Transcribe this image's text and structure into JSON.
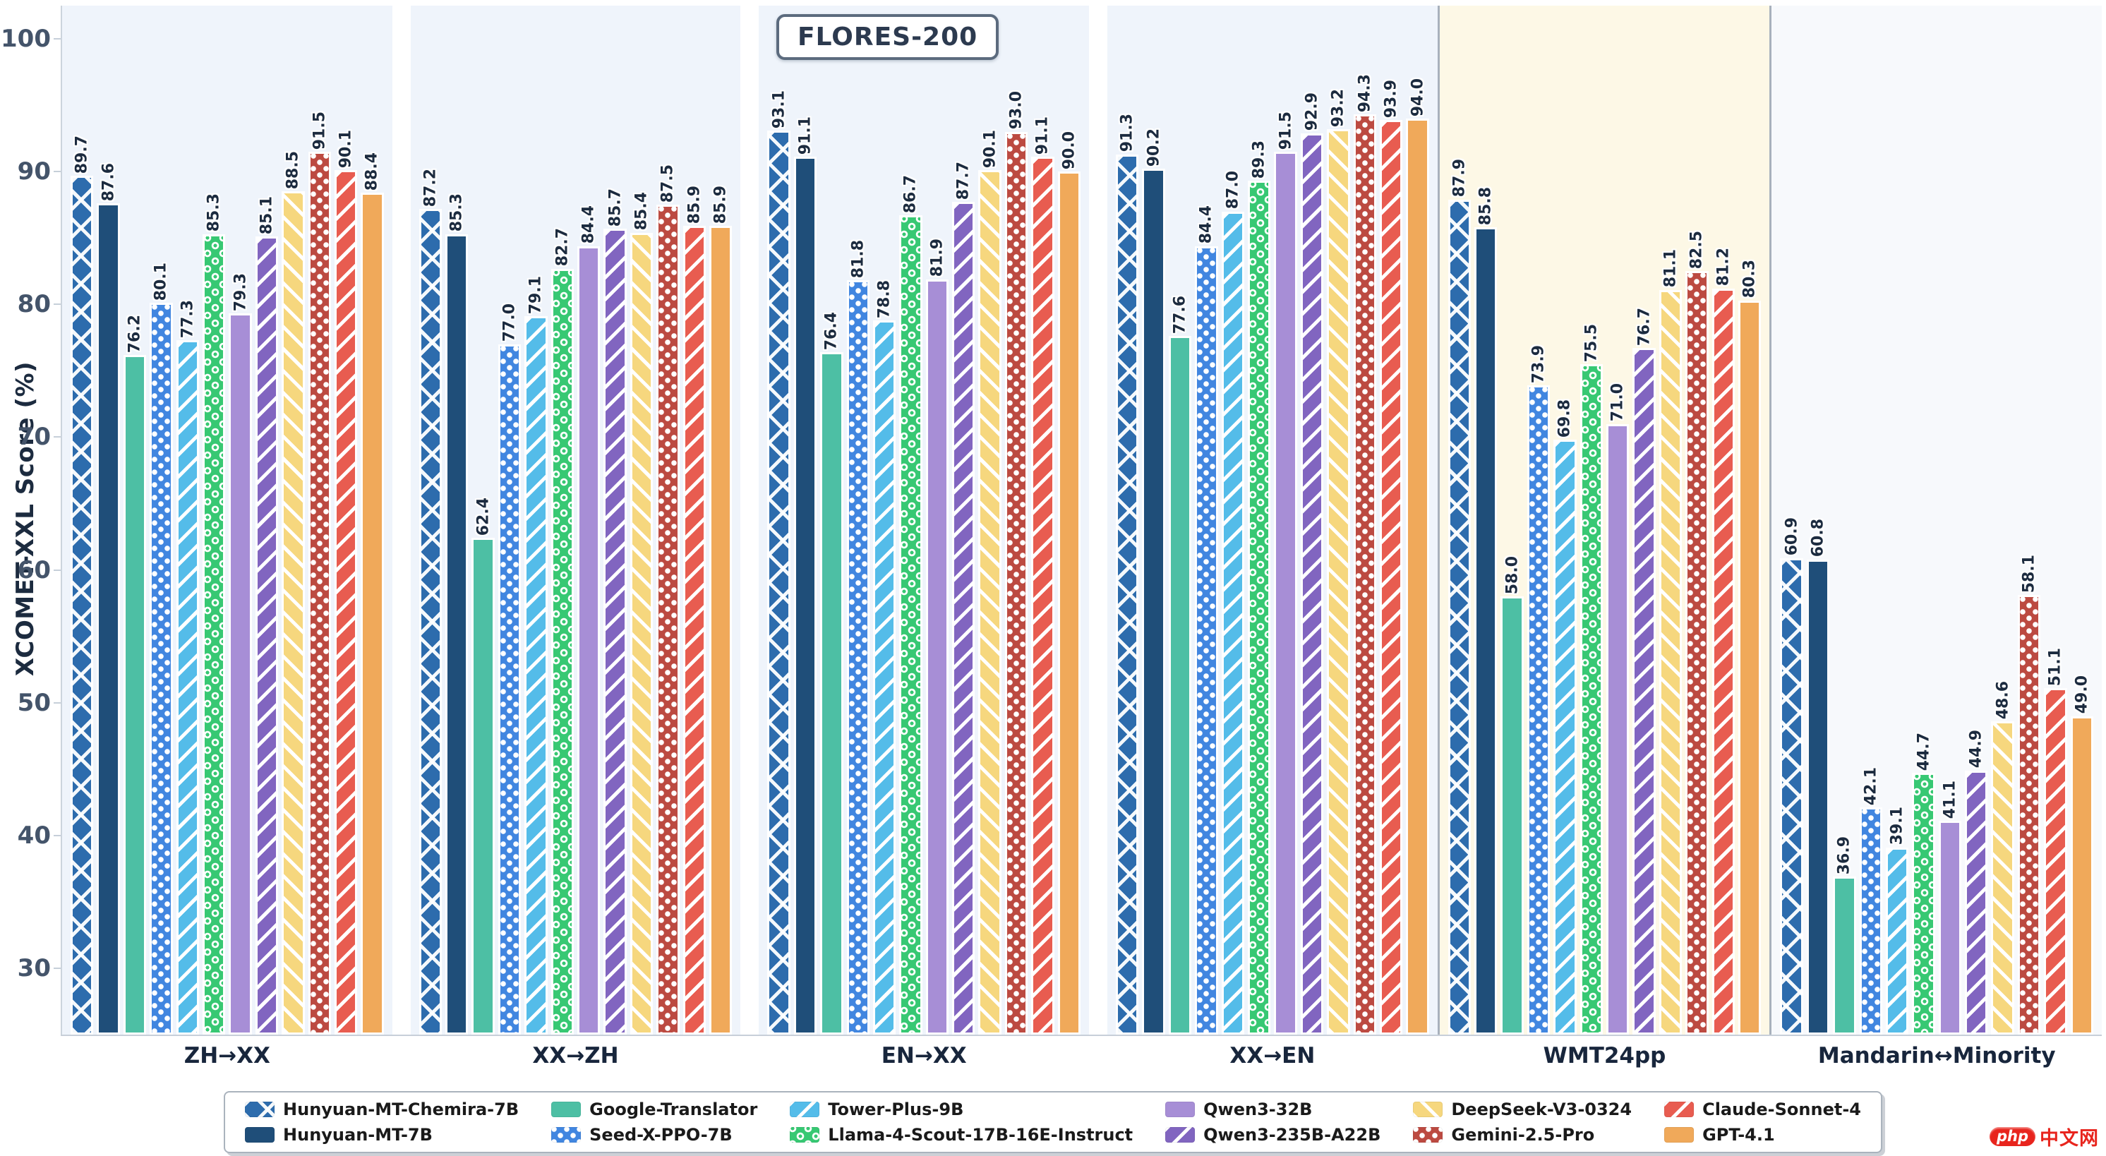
{
  "chart_data": {
    "type": "bar",
    "badge": "FLORES-200",
    "ylabel": "XCOMET-XXL Score (%)",
    "ylim": [
      25,
      102.5
    ],
    "yticks": [
      30,
      40,
      50,
      60,
      70,
      80,
      90,
      100
    ],
    "grid": true,
    "legend_position": "bottom",
    "value_decimals": 1,
    "categories": [
      "ZH→XX",
      "XX→ZH",
      "EN→XX",
      "XX→EN",
      "WMT24pp",
      "Mandarin↔Minority"
    ],
    "band_colors": [
      "#eff4fb",
      "#eff4fb",
      "#eff4fb",
      "#eff4fb",
      "#fdf8e6",
      "#f7f9fc"
    ],
    "highlight_band_index": 4,
    "series": [
      {
        "name": "Hunyuan-MT-Chemira-7B",
        "color": "#2d6cad",
        "pattern": "crosshatch",
        "values": [
          89.7,
          87.2,
          93.1,
          91.3,
          87.9,
          60.9
        ]
      },
      {
        "name": "Hunyuan-MT-7B",
        "color": "#1f4e79",
        "pattern": "solid",
        "values": [
          87.6,
          85.3,
          91.1,
          90.2,
          85.8,
          60.8
        ]
      },
      {
        "name": "Google-Translator",
        "color": "#4dbfa4",
        "pattern": "solid",
        "values": [
          76.2,
          62.4,
          76.4,
          77.6,
          58.0,
          36.9
        ]
      },
      {
        "name": "Seed-X-PPO-7B",
        "color": "#4186e0",
        "pattern": "dots",
        "values": [
          80.1,
          77.0,
          81.8,
          84.4,
          73.9,
          42.1
        ]
      },
      {
        "name": "Tower-Plus-9B",
        "color": "#54bce9",
        "pattern": "diag",
        "values": [
          77.3,
          79.1,
          78.8,
          87.0,
          69.8,
          39.1
        ]
      },
      {
        "name": "Llama-4-Scout-17B-16E-Instruct",
        "color": "#37c873",
        "pattern": "circles",
        "values": [
          85.3,
          82.7,
          86.7,
          89.3,
          75.5,
          44.7
        ]
      },
      {
        "name": "Qwen3-32B",
        "color": "#a78ed6",
        "pattern": "solid",
        "values": [
          79.3,
          84.4,
          81.9,
          91.5,
          71.0,
          41.1
        ]
      },
      {
        "name": "Qwen3-235B-A22B",
        "color": "#8165c0",
        "pattern": "diag",
        "values": [
          85.1,
          85.7,
          87.7,
          92.9,
          76.7,
          44.9
        ]
      },
      {
        "name": "DeepSeek-V3-0324",
        "color": "#f6d77e",
        "pattern": "rdiag",
        "values": [
          88.5,
          85.4,
          90.1,
          93.2,
          81.1,
          48.6
        ]
      },
      {
        "name": "Gemini-2.5-Pro",
        "color": "#bc4a41",
        "pattern": "dots",
        "values": [
          91.5,
          87.5,
          93.0,
          94.3,
          82.5,
          58.1
        ]
      },
      {
        "name": "Claude-Sonnet-4",
        "color": "#e85c50",
        "pattern": "diag",
        "values": [
          90.1,
          85.9,
          91.1,
          93.9,
          81.2,
          51.1
        ]
      },
      {
        "name": "GPT-4.1",
        "color": "#f0a95a",
        "pattern": "solid",
        "values": [
          88.4,
          85.9,
          90.0,
          94.0,
          80.3,
          49.0
        ]
      }
    ]
  },
  "watermark": {
    "logo_text": "php",
    "site_text": "中文网"
  }
}
